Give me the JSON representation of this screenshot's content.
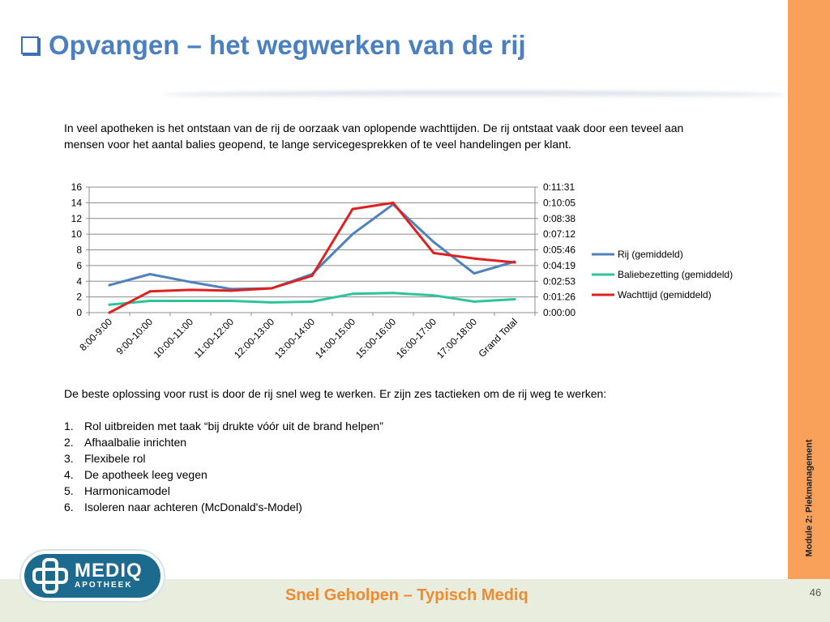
{
  "slide": {
    "title": "Opvangen – het wegwerken van de rij",
    "intro": "In veel apotheken is het ontstaan van de rij de oorzaak van oplopende wachttijden. De rij ontstaat vaak door een teveel aan mensen voor het aantal balies geopend, te lange servicegesprekken of te veel handelingen per klant.",
    "solution_text": "De beste oplossing voor rust is door de rij snel weg te werken. Er zijn zes tactieken om de rij weg te werken:",
    "tactics": [
      {
        "num": "1.",
        "text": "Rol uitbreiden met taak “bij drukte vóór uit de brand helpen”"
      },
      {
        "num": "2.",
        "text": "Afhaalbalie inrichten"
      },
      {
        "num": "3.",
        "text": "Flexibele rol"
      },
      {
        "num": "4.",
        "text": "De apotheek leeg vegen"
      },
      {
        "num": "5.",
        "text": "Harmonicamodel"
      },
      {
        "num": "6.",
        "text": "Isoleren naar achteren (McDonald's-Model)"
      }
    ],
    "side_label": "Module 2: Piekmanagement",
    "footer": "Snel Geholpen – Typisch Mediq",
    "page_number": "46",
    "logo": {
      "name": "MEDIQ",
      "sub": "APOTHEEK"
    },
    "colors": {
      "title": "#4a7fc1",
      "side_bar": "#f9a05a",
      "footer_bg": "#e9edde",
      "footer_text": "#f08a2e",
      "logo": "#1c6a8e"
    }
  },
  "chart_data": {
    "type": "line",
    "categories": [
      "8:00-9:00",
      "9:00-10:00",
      "10:00-11:00",
      "11:00-12:00",
      "12:00-13:00",
      "13:00-14:00",
      "14:00-15:00",
      "15:00-16:00",
      "16:00-17:00",
      "17:00-18:00",
      "Grand Total"
    ],
    "series": [
      {
        "name": "Rij (gemiddeld)",
        "axis": "left",
        "color": "#4f81bd",
        "values": [
          3.5,
          4.9,
          3.9,
          3.0,
          3.1,
          4.9,
          10.0,
          13.8,
          9.0,
          5.0,
          6.5
        ]
      },
      {
        "name": "Baliebezetting (gemiddeld)",
        "axis": "left",
        "color": "#2dc49a",
        "values": [
          1.0,
          1.5,
          1.5,
          1.5,
          1.3,
          1.4,
          2.4,
          2.5,
          2.2,
          1.4,
          1.7
        ]
      },
      {
        "name": "Wachttijd (gemiddeld)",
        "axis": "right",
        "color": "#e02020",
        "values": [
          0.0,
          2.7,
          2.9,
          2.8,
          3.1,
          4.7,
          13.2,
          14.0,
          7.6,
          6.9,
          6.4
        ]
      }
    ],
    "ylim": [
      0,
      16
    ],
    "yticks": [
      "0",
      "2",
      "4",
      "6",
      "8",
      "10",
      "12",
      "14",
      "16"
    ],
    "y2ticks": [
      "0:00:00",
      "0:01:26",
      "0:02:53",
      "0:04:19",
      "0:05:46",
      "0:07:12",
      "0:08:38",
      "0:10:05",
      "0:11:31"
    ],
    "grid": true,
    "legend": "right"
  }
}
